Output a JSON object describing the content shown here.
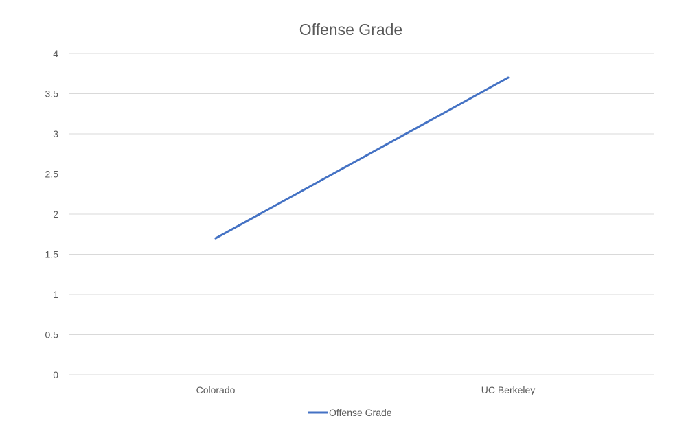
{
  "chart_data": {
    "type": "line",
    "title": "Offense Grade",
    "categories": [
      "Colorado",
      "UC Berkeley"
    ],
    "series": [
      {
        "name": "Offense Grade",
        "values": [
          1.7,
          3.7
        ],
        "color": "#4472C4"
      }
    ],
    "ylim": [
      0,
      4
    ],
    "yticks": [
      "0",
      "0.5",
      "1",
      "1.5",
      "2",
      "2.5",
      "3",
      "3.5",
      "4"
    ],
    "grid": true,
    "legend": "bottom",
    "gridline_color": "#d9d9d9",
    "text_color": "#595959"
  }
}
